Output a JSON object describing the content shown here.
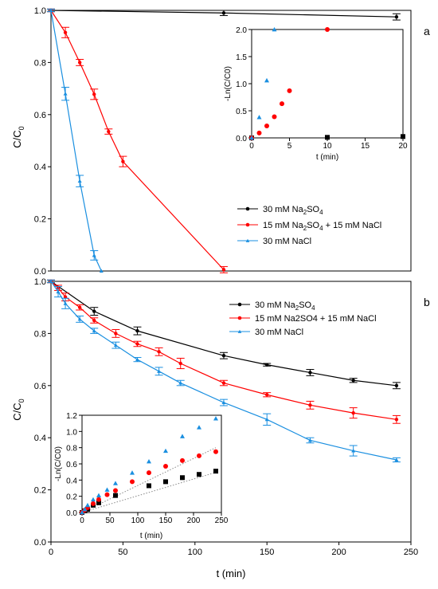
{
  "chart_data": [
    {
      "panel": "a",
      "type": "line",
      "xlabel": "",
      "ylabel": "C/C0",
      "xlim": [
        0,
        250
      ],
      "ylim": [
        0,
        1.0
      ],
      "x_ticks": [],
      "y_ticks": [
        "0.0",
        "0.2",
        "0.4",
        "0.6",
        "0.8",
        "1.0"
      ],
      "series": [
        {
          "name": "30 mM Na2SO4",
          "color": "#000000",
          "marker": "circle",
          "x": [
            0,
            120,
            240
          ],
          "y": [
            1.0,
            0.99,
            0.975
          ],
          "err": [
            0.005,
            0.01,
            0.012
          ]
        },
        {
          "name": "15 mM Na2SO4 + 15 mM NaCl",
          "color": "#ff0000",
          "marker": "circle",
          "x": [
            0,
            10,
            20,
            30,
            40,
            50,
            120
          ],
          "y": [
            1.0,
            0.915,
            0.8,
            0.678,
            0.535,
            0.42,
            0.005
          ],
          "err": [
            0.005,
            0.02,
            0.012,
            0.02,
            0.01,
            0.02,
            0.012
          ]
        },
        {
          "name": "30 mM NaCl",
          "color": "#1a8fe0",
          "marker": "triangle",
          "x": [
            0,
            10,
            20,
            30,
            35
          ],
          "y": [
            1.0,
            0.68,
            0.345,
            0.06,
            0.0
          ],
          "err": [
            0.005,
            0.025,
            0.022,
            0.018,
            0.0
          ]
        }
      ],
      "legend_position": "bottom-right",
      "legend": [
        {
          "base": "30 mM Na",
          "sub": "2",
          "rest": "SO",
          "sub2": "4",
          "tail": ""
        },
        {
          "base": "15 mM Na",
          "sub": "2",
          "rest": "SO",
          "sub2": "4",
          "tail": " + 15 mM NaCl"
        },
        {
          "base": "30 mM NaCl",
          "sub": "",
          "rest": "",
          "sub2": "",
          "tail": ""
        }
      ],
      "inset": {
        "type": "scatter",
        "xlabel": "t (min)",
        "ylabel": "-Ln(C/C0)",
        "xlim": [
          0,
          20
        ],
        "ylim": [
          0,
          2.0
        ],
        "x_ticks": [
          "0",
          "5",
          "10",
          "15",
          "20"
        ],
        "y_ticks": [
          "0.0",
          "0.5",
          "1.0",
          "1.5",
          "2.0"
        ],
        "series": [
          {
            "name": "30 mM Na2SO4",
            "color": "#000000",
            "marker": "square",
            "x": [
              0,
              10,
              20
            ],
            "y": [
              0.0,
              0.01,
              0.025
            ]
          },
          {
            "name": "15 mM Na2SO4 + 15 mM NaCl",
            "color": "#ff0000",
            "marker": "circle",
            "x": [
              0,
              1,
              2,
              3,
              4,
              5,
              10
            ],
            "y": [
              0.0,
              0.09,
              0.22,
              0.39,
              0.63,
              0.87,
              2.0
            ]
          },
          {
            "name": "30 mM NaCl",
            "color": "#1a8fe0",
            "marker": "triangle",
            "x": [
              0,
              1,
              2,
              3
            ],
            "y": [
              0.0,
              0.38,
              1.06,
              2.0
            ]
          }
        ]
      }
    },
    {
      "panel": "b",
      "type": "line",
      "xlabel": "t (min)",
      "ylabel": "C/C0",
      "xlim": [
        0,
        250
      ],
      "ylim": [
        0,
        1.0
      ],
      "x_ticks": [
        "0",
        "50",
        "100",
        "150",
        "200",
        "250"
      ],
      "y_ticks": [
        "0.0",
        "0.2",
        "0.4",
        "0.6",
        "0.8",
        "1.0"
      ],
      "series": [
        {
          "name": "30 mM Na2SO4",
          "color": "#000000",
          "marker": "circle",
          "x": [
            0,
            30,
            60,
            120,
            150,
            180,
            210,
            240
          ],
          "y": [
            1.0,
            0.885,
            0.81,
            0.715,
            0.68,
            0.65,
            0.62,
            0.6
          ],
          "err": [
            0.005,
            0.015,
            0.015,
            0.012,
            0.005,
            0.012,
            0.008,
            0.012
          ]
        },
        {
          "name": "15 mM Na2SO4 + 15 mM NaCl",
          "color": "#ff0000",
          "marker": "circle",
          "x": [
            0,
            5,
            10,
            20,
            30,
            45,
            60,
            75,
            90,
            120,
            150,
            180,
            210,
            240
          ],
          "y": [
            1.0,
            0.975,
            0.94,
            0.9,
            0.85,
            0.8,
            0.76,
            0.73,
            0.685,
            0.61,
            0.565,
            0.525,
            0.495,
            0.47
          ],
          "err": [
            0.005,
            0.01,
            0.015,
            0.01,
            0.01,
            0.015,
            0.01,
            0.015,
            0.02,
            0.01,
            0.008,
            0.015,
            0.02,
            0.015
          ]
        },
        {
          "name": "30 mM NaCl",
          "color": "#1a8fe0",
          "marker": "triangle",
          "x": [
            0,
            5,
            10,
            20,
            30,
            45,
            60,
            75,
            90,
            120,
            150,
            180,
            210,
            240
          ],
          "y": [
            1.0,
            0.96,
            0.915,
            0.855,
            0.81,
            0.755,
            0.7,
            0.655,
            0.61,
            0.535,
            0.47,
            0.39,
            0.35,
            0.315
          ],
          "err": [
            0.005,
            0.02,
            0.02,
            0.012,
            0.01,
            0.012,
            0.008,
            0.015,
            0.01,
            0.012,
            0.022,
            0.01,
            0.02,
            0.008
          ]
        }
      ],
      "legend_position": "top-right",
      "legend": [
        {
          "base": "30 mM Na",
          "sub": "2",
          "rest": "SO",
          "sub2": "4",
          "tail": ""
        },
        {
          "base": "15 mM Na2SO4 + 15 mM NaCl",
          "sub": "",
          "rest": "",
          "sub2": "",
          "tail": ""
        },
        {
          "base": "30 mM NaCl",
          "sub": "",
          "rest": "",
          "sub2": "",
          "tail": ""
        }
      ],
      "inset": {
        "type": "scatter",
        "xlabel": "t (min)",
        "ylabel": "-Ln(C/C0)",
        "xlim": [
          0,
          250
        ],
        "ylim": [
          0,
          1.2
        ],
        "x_ticks": [
          "0",
          "50",
          "100",
          "150",
          "200",
          "250"
        ],
        "y_ticks": [
          "0.0",
          "0.2",
          "0.4",
          "0.6",
          "0.8",
          "1.0",
          "1.2"
        ],
        "series": [
          {
            "name": "30 mM Na2SO4",
            "color": "#000000",
            "marker": "square",
            "x": [
              0,
              5,
              10,
              20,
              30,
              60,
              120,
              150,
              180,
              210,
              240
            ],
            "y": [
              0.0,
              0.02,
              0.04,
              0.09,
              0.12,
              0.21,
              0.33,
              0.38,
              0.43,
              0.47,
              0.51
            ]
          },
          {
            "name": "15 mM Na2SO4 + 15 mM NaCl",
            "color": "#ff0000",
            "marker": "circle",
            "x": [
              0,
              5,
              10,
              20,
              30,
              45,
              60,
              90,
              120,
              150,
              180,
              210,
              240
            ],
            "y": [
              0.0,
              0.03,
              0.06,
              0.11,
              0.16,
              0.22,
              0.27,
              0.38,
              0.49,
              0.57,
              0.64,
              0.7,
              0.75
            ]
          },
          {
            "name": "30 mM NaCl",
            "color": "#1a8fe0",
            "marker": "triangle",
            "x": [
              0,
              5,
              10,
              20,
              30,
              45,
              60,
              90,
              120,
              150,
              180,
              210,
              240
            ],
            "y": [
              0.0,
              0.04,
              0.09,
              0.16,
              0.21,
              0.28,
              0.36,
              0.49,
              0.63,
              0.76,
              0.94,
              1.05,
              1.16
            ]
          }
        ],
        "fit_lines": [
          {
            "x": [
              0,
              240
            ],
            "y": [
              0.0,
              0.495
            ]
          },
          {
            "x": [
              0,
              240
            ],
            "y": [
              0.0,
              0.8
            ]
          }
        ]
      }
    }
  ],
  "panel_labels": {
    "a": "a",
    "b": "b"
  },
  "xaxis_title": "t (min)",
  "yaxis_title": {
    "main": "C/C",
    "sub": "0"
  }
}
